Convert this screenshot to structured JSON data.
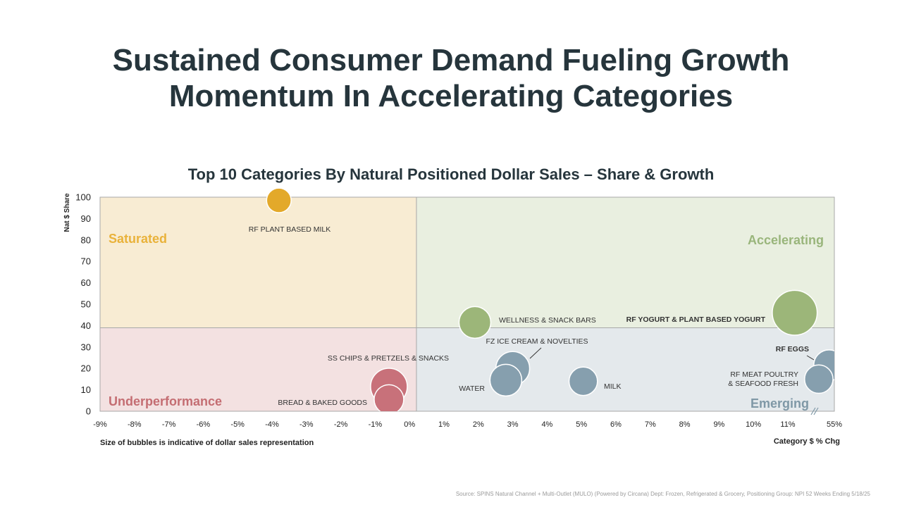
{
  "slide": {
    "title_line1": "Sustained Consumer Demand Fueling Growth",
    "title_line2": "Momentum In Accelerating Categories",
    "source": "Source: SPINS Natural Channel + Multi-Outlet (MULO) (Powered by Circana) Dept: Frozen, Refrigerated & Grocery, Positioning Group: NPI 52 Weeks Ending 5/18/25"
  },
  "chart_data": {
    "type": "scatter",
    "subtype": "bubble",
    "title": "Top 10 Categories By Natural Positioned Dollar Sales – Share & Growth",
    "xlabel": "Category $ % Chg",
    "ylabel": "Nat $ Share",
    "bubble_note": "Size of bubbles is indicative of dollar sales representation",
    "x_ticks": [
      "-9%",
      "-8%",
      "-7%",
      "-6%",
      "-5%",
      "-4%",
      "-3%",
      "-2%",
      "-1%",
      "0%",
      "1%",
      "2%",
      "3%",
      "4%",
      "5%",
      "6%",
      "7%",
      "8%",
      "9%",
      "10%",
      "11%",
      "55%"
    ],
    "y_ticks": [
      "0",
      "10",
      "20",
      "30",
      "40",
      "50",
      "60",
      "70",
      "80",
      "90",
      "100"
    ],
    "xlim": [
      -9,
      12.4
    ],
    "ylim": [
      0,
      100
    ],
    "axis_break": "between 11% and 55%",
    "quadrant_split": {
      "x": 0.2,
      "y": 39
    },
    "quadrants": [
      {
        "name": "Saturated",
        "position": "top-left",
        "color": "#e9b23a",
        "fill": "#f8ecd3"
      },
      {
        "name": "Accelerating",
        "position": "top-right",
        "color": "#99b57b",
        "fill": "#e9efe0"
      },
      {
        "name": "Underperformance",
        "position": "bottom-left",
        "color": "#c46d72",
        "fill": "#f3e1e1"
      },
      {
        "name": "Emerging",
        "position": "bottom-right",
        "color": "#7f98a6",
        "fill": "#e4e9ec"
      }
    ],
    "series": [
      {
        "label": "RF PLANT BASED MILK",
        "x": -3.8,
        "y": 98.5,
        "size": 0.45,
        "color": "#e3a92a"
      },
      {
        "label": "WELLNESS & SNACK BARS",
        "x": 1.9,
        "y": 41.5,
        "size": 0.75,
        "color": "#9cb679"
      },
      {
        "label": "RF YOGURT & PLANT BASED YOGURT",
        "x": 11.2,
        "y": 46,
        "size": 1.5,
        "color": "#9cb679"
      },
      {
        "label": "FZ ICE CREAM & NOVELTIES",
        "x": 3.0,
        "y": 20,
        "size": 0.85,
        "color": "#869fae"
      },
      {
        "label": "WATER",
        "x": 2.8,
        "y": 14.5,
        "size": 0.75,
        "color": "#869fae"
      },
      {
        "label": "MILK",
        "x": 5.05,
        "y": 14,
        "size": 0.6,
        "color": "#869fae"
      },
      {
        "label": "RF EGGS",
        "x": 12.2,
        "y": 21.5,
        "size": 0.7,
        "color": "#869fae"
      },
      {
        "label": "RF MEAT POULTRY & SEAFOOD FRESH",
        "x": 11.9,
        "y": 15,
        "size": 0.6,
        "color": "#869fae"
      },
      {
        "label": "SS CHIPS & PRETZELS & SNACKS",
        "x": -0.6,
        "y": 11.5,
        "size": 1.0,
        "color": "#c8717a"
      },
      {
        "label": "BREAD & BAKED GOODS",
        "x": -0.6,
        "y": 5.5,
        "size": 0.65,
        "color": "#c8717a"
      }
    ]
  }
}
